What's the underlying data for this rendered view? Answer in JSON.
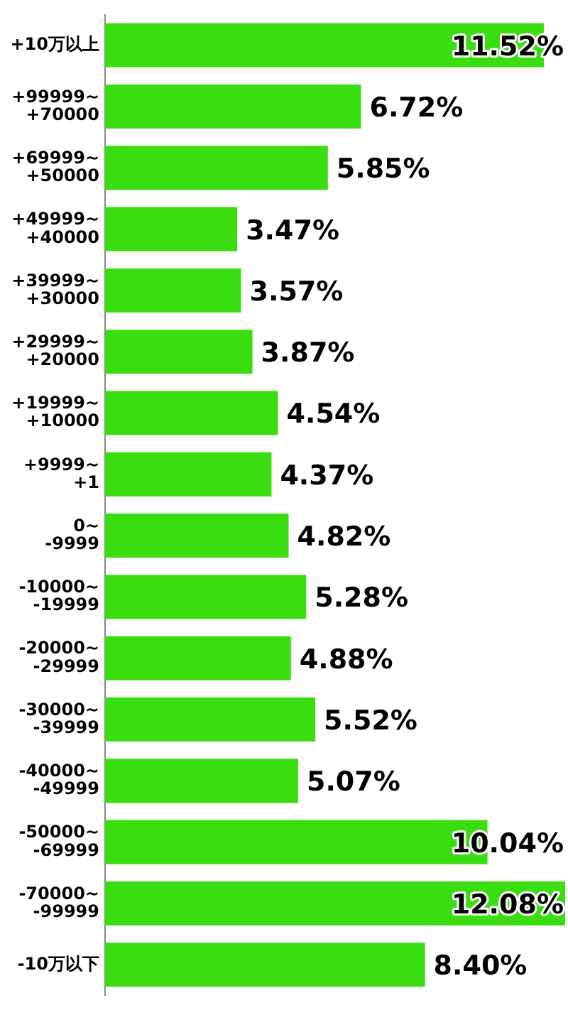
{
  "chart_data": {
    "type": "bar",
    "orientation": "horizontal",
    "categories": [
      "+10万以上",
      "+99999~\n+70000",
      "+69999~\n+50000",
      "+49999~\n+40000",
      "+39999~\n+30000",
      "+29999~\n+20000",
      "+19999~\n+10000",
      "+9999~\n+1",
      "0~\n-9999",
      "-10000~\n-19999",
      "-20000~\n-29999",
      "-30000~\n-39999",
      "-40000~\n-49999",
      "-50000~\n-69999",
      "-70000~\n-99999",
      "-10万以下"
    ],
    "values": [
      11.52,
      6.72,
      5.85,
      3.47,
      3.57,
      3.87,
      4.54,
      4.37,
      4.82,
      5.28,
      4.88,
      5.52,
      5.07,
      10.04,
      12.08,
      8.4
    ],
    "value_labels": [
      "11.52%",
      "6.72%",
      "5.85%",
      "3.47%",
      "3.57%",
      "3.87%",
      "4.54%",
      "4.37%",
      "4.82%",
      "5.28%",
      "4.88%",
      "5.52%",
      "5.07%",
      "10.04%",
      "12.08%",
      "8.40%"
    ],
    "color": "#3ade10",
    "grid": false,
    "legend": false
  }
}
